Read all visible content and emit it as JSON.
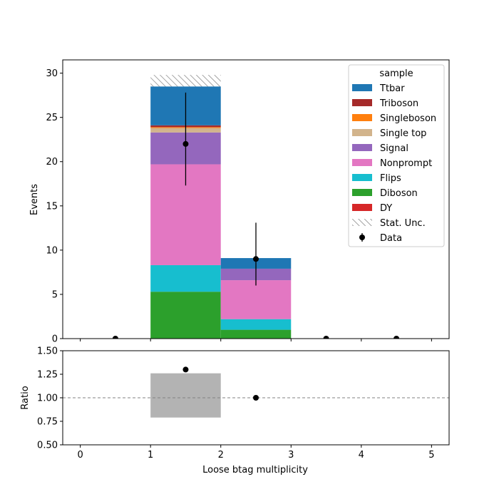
{
  "chart_data": [
    {
      "type": "bar",
      "stacked": true,
      "title": "",
      "xlabel": "",
      "ylabel": "Events",
      "xlim": [
        -0.25,
        5.25
      ],
      "ylim": [
        0,
        31.5
      ],
      "xticks": [
        0,
        1,
        2,
        3,
        4,
        5
      ],
      "yticks": [
        0,
        5,
        10,
        15,
        20,
        25,
        30
      ],
      "ytick_labels": [
        "0",
        "5",
        "10",
        "15",
        "20",
        "25",
        "30"
      ],
      "bins": [
        [
          1,
          2
        ],
        [
          2,
          3
        ]
      ],
      "series": [
        {
          "name": "DY",
          "color": "#d62728",
          "values": [
            0.0,
            0.0
          ]
        },
        {
          "name": "Diboson",
          "color": "#2ca02c",
          "values": [
            5.3,
            1.0
          ]
        },
        {
          "name": "Flips",
          "color": "#17becf",
          "values": [
            3.0,
            1.2
          ]
        },
        {
          "name": "Nonprompt",
          "color": "#e377c2",
          "values": [
            11.4,
            4.4
          ]
        },
        {
          "name": "Signal",
          "color": "#9467bd",
          "values": [
            3.6,
            1.3
          ]
        },
        {
          "name": "Single top",
          "color": "#d2b48c",
          "values": [
            0.5,
            0.0
          ]
        },
        {
          "name": "Singleboson",
          "color": "#ff7f0e",
          "values": [
            0.1,
            0.0
          ]
        },
        {
          "name": "Triboson",
          "color": "#a52a2a",
          "values": [
            0.2,
            0.0
          ]
        },
        {
          "name": "Ttbar",
          "color": "#1f77b4",
          "values": [
            4.4,
            1.2
          ]
        }
      ],
      "stat_unc": [
        {
          "x0": 1,
          "x1": 2,
          "low": 28.5,
          "high": 29.8
        },
        {
          "x0": 2,
          "x1": 3,
          "low": 9.1,
          "high": 9.1
        }
      ],
      "data_points": [
        {
          "x": 0.5,
          "y": 0,
          "err_low": 0,
          "err_high": 0
        },
        {
          "x": 1.5,
          "y": 22,
          "err_low": 4.7,
          "err_high": 5.8
        },
        {
          "x": 2.5,
          "y": 9,
          "err_low": 3.0,
          "err_high": 4.1
        },
        {
          "x": 3.5,
          "y": 0,
          "err_low": 0,
          "err_high": 0
        },
        {
          "x": 4.5,
          "y": 0,
          "err_low": 0,
          "err_high": 0
        }
      ],
      "legend": {
        "title": "sample",
        "placement": "upper right",
        "entries": [
          {
            "label": "Ttbar",
            "kind": "patch",
            "color": "#1f77b4"
          },
          {
            "label": "Triboson",
            "kind": "patch",
            "color": "#a52a2a"
          },
          {
            "label": "Singleboson",
            "kind": "patch",
            "color": "#ff7f0e"
          },
          {
            "label": "Single top",
            "kind": "patch",
            "color": "#d2b48c"
          },
          {
            "label": "Signal",
            "kind": "patch",
            "color": "#9467bd"
          },
          {
            "label": "Nonprompt",
            "kind": "patch",
            "color": "#e377c2"
          },
          {
            "label": "Flips",
            "kind": "patch",
            "color": "#17becf"
          },
          {
            "label": "Diboson",
            "kind": "patch",
            "color": "#2ca02c"
          },
          {
            "label": "DY",
            "kind": "patch",
            "color": "#d62728"
          },
          {
            "label": "Stat. Unc.",
            "kind": "hatch",
            "color": "#808080"
          },
          {
            "label": "Data",
            "kind": "errorpoint",
            "color": "#000000"
          }
        ]
      }
    },
    {
      "type": "scatter",
      "title": "",
      "xlabel": "Loose btag multiplicity",
      "ylabel": "Ratio",
      "xlim": [
        -0.25,
        5.25
      ],
      "ylim": [
        0.5,
        1.5
      ],
      "xticks": [
        0,
        1,
        2,
        3,
        4,
        5
      ],
      "xtick_labels": [
        "0",
        "1",
        "2",
        "3",
        "4",
        "5"
      ],
      "yticks": [
        0.5,
        0.75,
        1.0,
        1.25,
        1.5
      ],
      "ytick_labels": [
        "0.50",
        "0.75",
        "1.00",
        "1.25",
        "1.50"
      ],
      "reference_line": 1.0,
      "unc_bands": [
        {
          "x0": 1,
          "x1": 2,
          "low": 0.79,
          "high": 1.26,
          "color": "#b3b3b3"
        }
      ],
      "points": [
        {
          "x": 1.5,
          "y": 1.3
        },
        {
          "x": 2.5,
          "y": 1.0
        }
      ]
    }
  ]
}
